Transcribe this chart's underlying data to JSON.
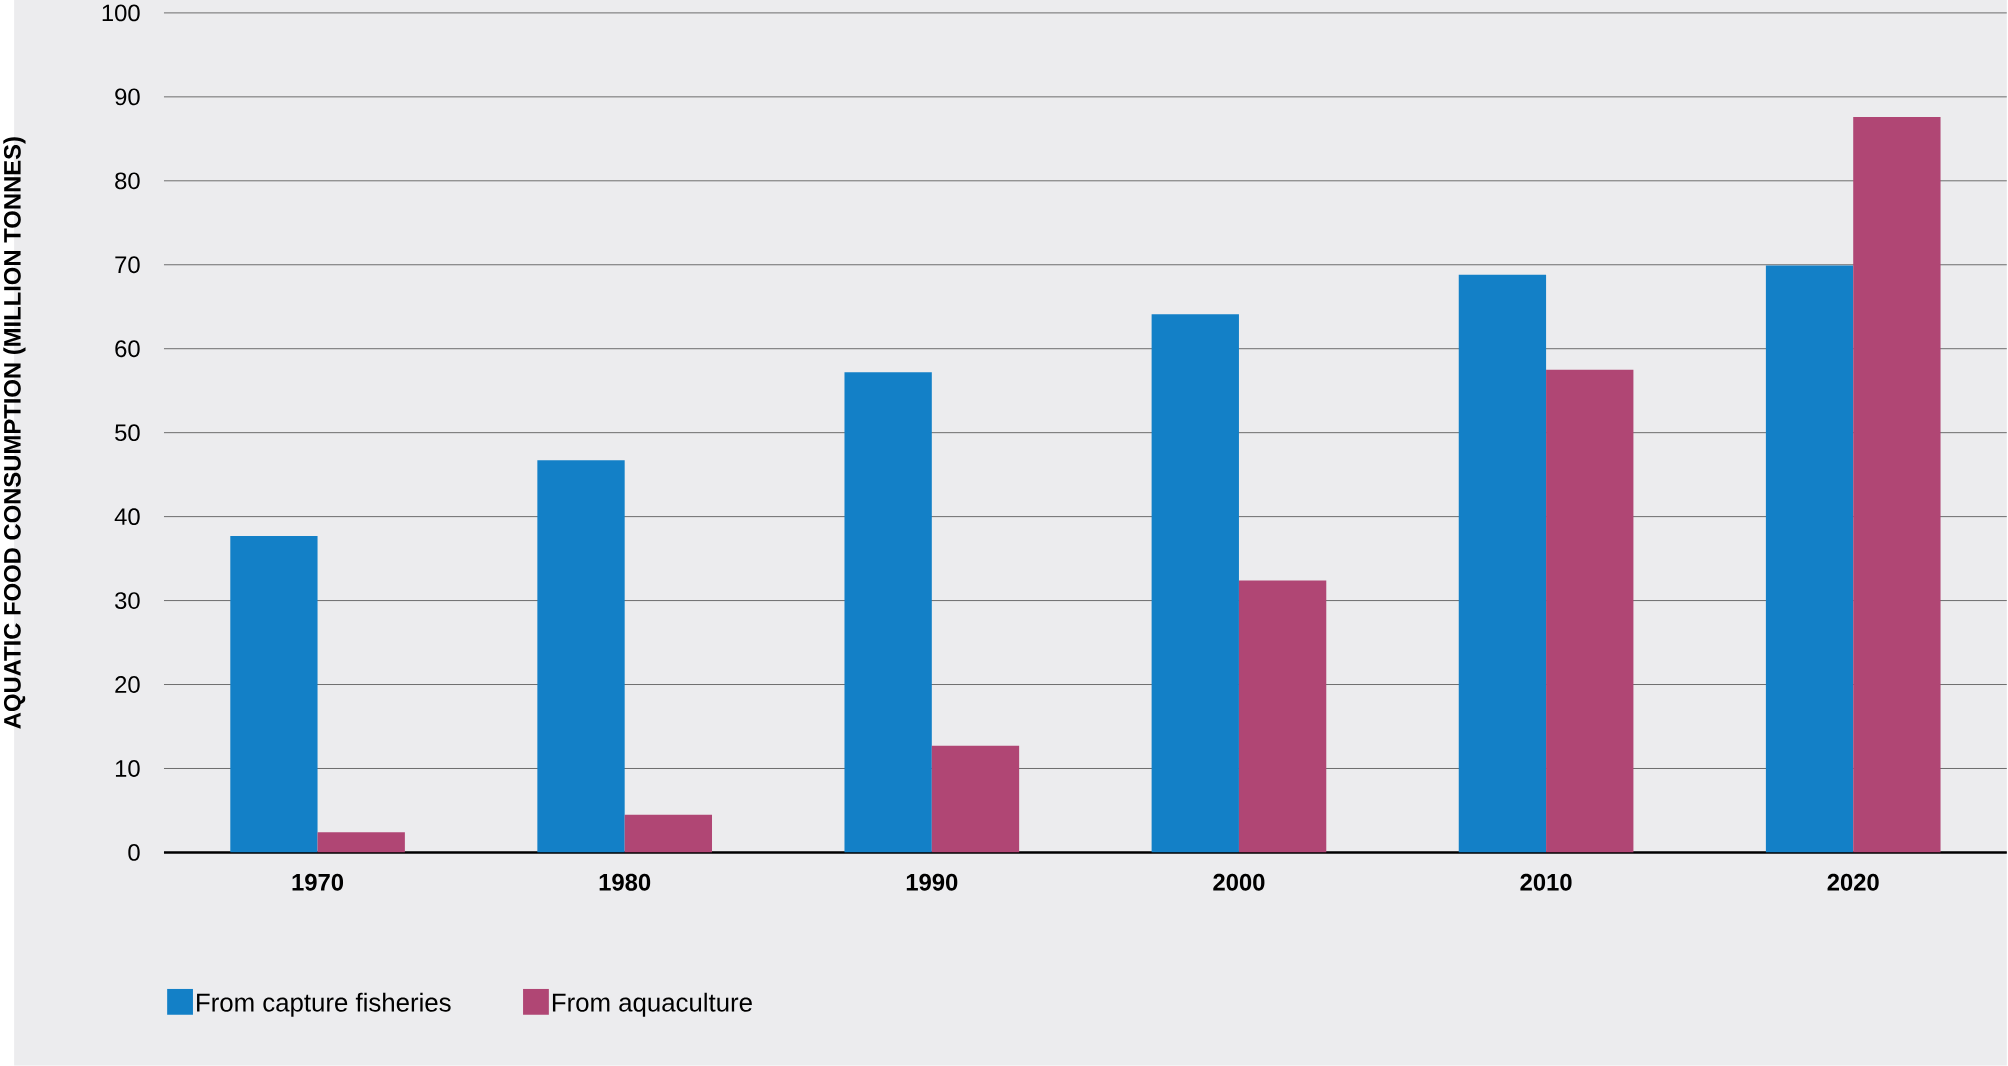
{
  "chart_data": {
    "type": "bar",
    "ylabel": "AQUATIC FOOD CONSUMPTION (MILLION TONNES)",
    "categories": [
      "1970",
      "1980",
      "1990",
      "2000",
      "2010",
      "2020"
    ],
    "series": [
      {
        "name": "From capture fisheries",
        "color": "#1380c7",
        "values": [
          37.7,
          46.7,
          57.2,
          64.1,
          68.8,
          69.9
        ]
      },
      {
        "name": "From aquaculture",
        "color": "#b04674",
        "values": [
          2.4,
          4.5,
          12.7,
          32.4,
          57.5,
          87.6
        ]
      }
    ],
    "ylim": [
      0,
      100
    ],
    "yticks": [
      0,
      10,
      20,
      30,
      40,
      50,
      60,
      70,
      80,
      90,
      100
    ],
    "grid": "y",
    "legend": "bottom"
  }
}
